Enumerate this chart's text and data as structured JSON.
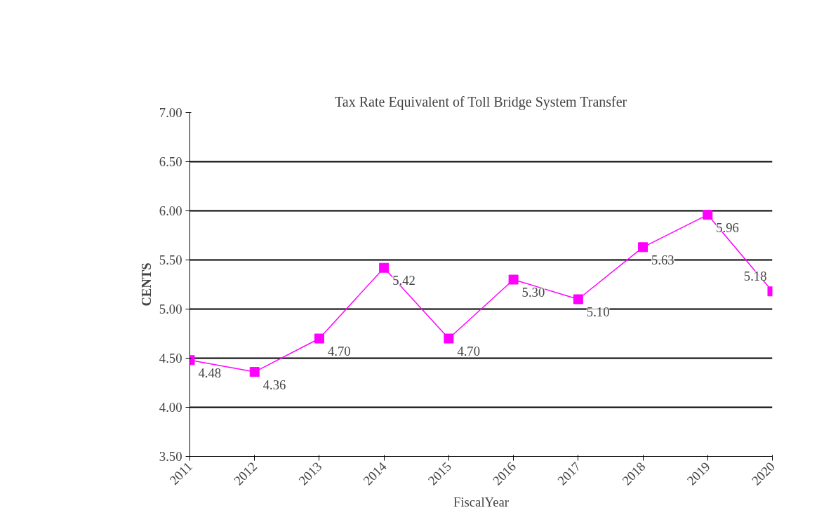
{
  "chart_data": {
    "type": "line",
    "title": "Tax Rate Equivalent of Toll Bridge System Transfer",
    "xlabel": "FiscalYear",
    "ylabel": "CENTS",
    "categories": [
      "2011",
      "2012",
      "2013",
      "2014",
      "2015",
      "2016",
      "2017",
      "2018",
      "2019",
      "2020"
    ],
    "series": [
      {
        "color": "#ff00ff",
        "values": [
          4.48,
          4.36,
          4.7,
          5.42,
          4.7,
          5.3,
          5.1,
          5.63,
          5.96,
          5.18
        ]
      }
    ],
    "ylim": [
      3.5,
      7.0
    ],
    "yticks": [
      {
        "value": 3.5,
        "label": "3.50"
      },
      {
        "value": 4.0,
        "label": "4.00"
      },
      {
        "value": 4.5,
        "label": "4.50"
      },
      {
        "value": 5.0,
        "label": "5.00"
      },
      {
        "value": 5.5,
        "label": "5.50"
      },
      {
        "value": 6.0,
        "label": "6.00"
      },
      {
        "value": 6.5,
        "label": "6.50"
      },
      {
        "value": 7.0,
        "label": "7.00"
      }
    ],
    "value_labels": [
      "4.48",
      "4.36",
      "4.70",
      "5.42",
      "4.70",
      "5.30",
      "5.10",
      "5.63",
      "5.96",
      "5.18"
    ],
    "grid": "y",
    "marker": "square",
    "line_style": "solid"
  }
}
